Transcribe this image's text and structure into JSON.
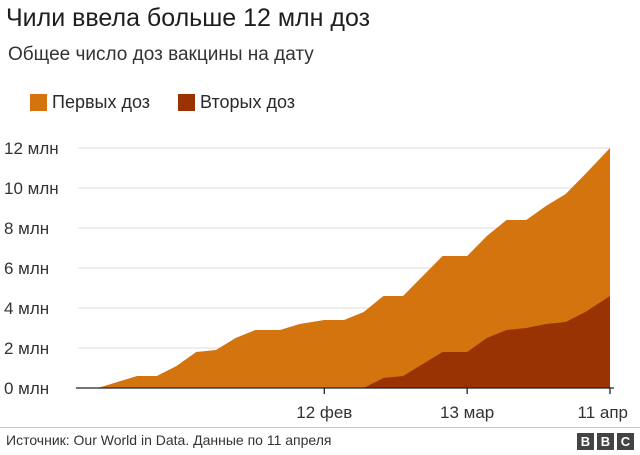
{
  "title": "Чили ввела больше 12 млн доз",
  "subtitle": "Общее число доз вакцины на дату",
  "source": "Источник: Our World in Data. Данные по 11 апреля",
  "logo": {
    "letters": [
      "B",
      "B",
      "C"
    ]
  },
  "colors": {
    "first_dose": "#d4740f",
    "second_dose": "#9a3303",
    "axis": "#222222",
    "grid": "#dddddd"
  },
  "chart_data": {
    "type": "area",
    "stacked": false,
    "x_dates": [
      "2020-12-24",
      "2020-12-28",
      "2021-01-01",
      "2021-01-05",
      "2021-01-09",
      "2021-01-13",
      "2021-01-17",
      "2021-01-21",
      "2021-01-25",
      "2021-01-29",
      "2021-02-03",
      "2021-02-07",
      "2021-02-12",
      "2021-02-16",
      "2021-02-20",
      "2021-02-24",
      "2021-02-28",
      "2021-03-04",
      "2021-03-08",
      "2021-03-13",
      "2021-03-17",
      "2021-03-21",
      "2021-03-25",
      "2021-03-29",
      "2021-04-02",
      "2021-04-06",
      "2021-04-11"
    ],
    "series": [
      {
        "name": "Первых доз",
        "color": "#d4740f",
        "values": [
          0.0,
          0.0,
          0.3,
          0.6,
          0.6,
          1.1,
          1.8,
          1.9,
          2.5,
          2.9,
          2.9,
          3.2,
          3.4,
          3.4,
          3.8,
          4.6,
          4.6,
          5.6,
          6.6,
          6.6,
          7.6,
          8.4,
          8.4,
          9.1,
          9.7,
          10.7,
          12.0
        ]
      },
      {
        "name": "Вторых доз",
        "color": "#9a3303",
        "values": [
          0.0,
          0.0,
          0.0,
          0.0,
          0.0,
          0.0,
          0.0,
          0.0,
          0.0,
          0.0,
          0.0,
          0.0,
          0.0,
          0.0,
          0.0,
          0.5,
          0.6,
          1.2,
          1.8,
          1.8,
          2.5,
          2.9,
          3.0,
          3.2,
          3.3,
          3.8,
          4.6
        ]
      }
    ],
    "y_ticks": [
      0,
      2,
      4,
      6,
      8,
      10,
      12
    ],
    "y_tick_labels": [
      "0 млн",
      "2 млн",
      "4 млн",
      "6 млн",
      "8 млн",
      "10 млн",
      "12 млн"
    ],
    "ylim": [
      0,
      12
    ],
    "x_tick_dates": [
      "2021-02-12",
      "2021-03-13",
      "2021-04-11"
    ],
    "x_tick_labels": [
      "12 фев",
      "13 мар",
      "11 апр"
    ],
    "grid": true,
    "legend_position": "top-left"
  }
}
